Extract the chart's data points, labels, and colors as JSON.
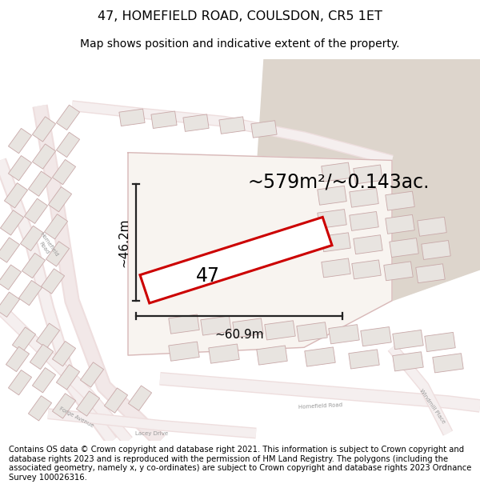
{
  "title_line1": "47, HOMEFIELD ROAD, COULSDON, CR5 1ET",
  "title_line2": "Map shows position and indicative extent of the property.",
  "footer_text": "Contains OS data © Crown copyright and database right 2021. This information is subject to Crown copyright and database rights 2023 and is reproduced with the permission of HM Land Registry. The polygons (including the associated geometry, namely x, y co-ordinates) are subject to Crown copyright and database rights 2023 Ordnance Survey 100026316.",
  "area_text": "~579m²/~0.143ac.",
  "label_47": "47",
  "dim_width": "~60.9m",
  "dim_height": "~46.2m",
  "bg_color": "#f2ede8",
  "tan_color": "#ddd5cc",
  "street_color": "#e8c8c8",
  "building_fill": "#e8e4e0",
  "building_edge": "#c8a8a8",
  "road_fill": "#f5efeb",
  "road_edge": "#d4a8a8",
  "plot_color": "#cc0000",
  "plot_fill": "#ffffff",
  "dim_color": "#222222",
  "title_fontsize": 11.5,
  "subtitle_fontsize": 10,
  "footer_fontsize": 7.2,
  "area_fontsize": 17,
  "label_fontsize": 17,
  "dim_fontsize": 11
}
